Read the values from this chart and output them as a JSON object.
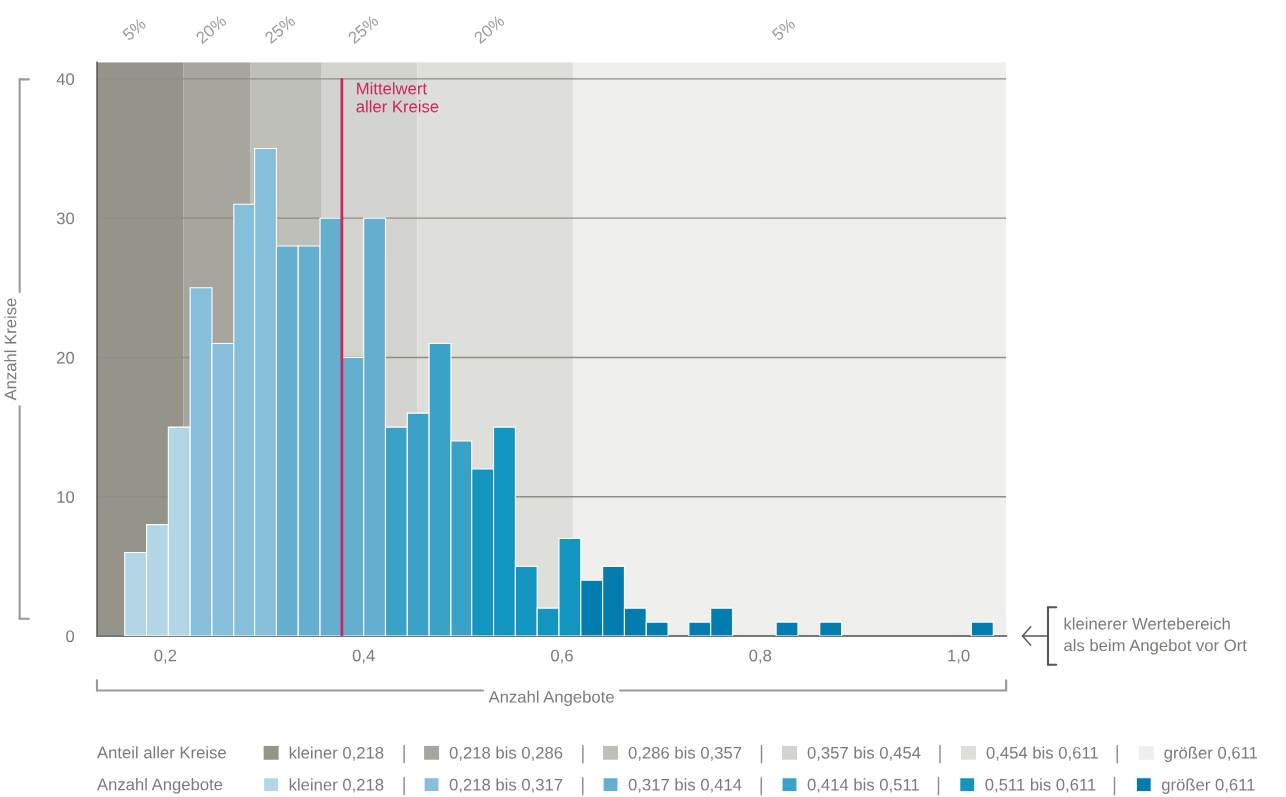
{
  "chart_data": {
    "type": "histogram",
    "bins": [
      0.159,
      0.181,
      0.203,
      0.225,
      0.247,
      0.269,
      0.29,
      0.312,
      0.334,
      0.356,
      0.378,
      0.4,
      0.422,
      0.444,
      0.466,
      0.488,
      0.509,
      0.531,
      0.553,
      0.575,
      0.597,
      0.619,
      0.641,
      0.663,
      0.685,
      0.707,
      0.728,
      0.75,
      0.772,
      0.816,
      0.838,
      0.86,
      0.882,
      1.013,
      1.035
    ],
    "series": [
      {
        "name": "kleiner 0,218",
        "color": "#b2d6e6",
        "values": [
          6,
          8,
          15,
          null,
          null,
          null,
          null,
          null,
          null,
          null,
          null,
          null,
          null,
          null,
          null,
          null,
          null,
          null,
          null,
          null,
          null,
          null,
          null,
          null,
          null,
          null,
          null,
          null,
          null,
          null,
          null,
          null,
          null,
          null
        ]
      },
      {
        "name": "0,218 bis 0,317",
        "color": "#87bfdb",
        "values": [
          null,
          null,
          null,
          25,
          21,
          31,
          35,
          null,
          null,
          null,
          null,
          null,
          null,
          null,
          null,
          null,
          null,
          null,
          null,
          null,
          null,
          null,
          null,
          null,
          null,
          null,
          null,
          null,
          null,
          null,
          null,
          null,
          null,
          null
        ]
      },
      {
        "name": "0,317 bis 0,414",
        "color": "#64afd0",
        "values": [
          null,
          null,
          null,
          null,
          null,
          null,
          null,
          28,
          28,
          30,
          20,
          30,
          null,
          null,
          null,
          null,
          null,
          null,
          null,
          null,
          null,
          null,
          null,
          null,
          null,
          null,
          null,
          null,
          null,
          null,
          null,
          null,
          null,
          null
        ]
      },
      {
        "name": "0,414 bis 0,511",
        "color": "#3aa2c6",
        "values": [
          null,
          null,
          null,
          null,
          null,
          null,
          null,
          null,
          null,
          null,
          null,
          null,
          15,
          16,
          21,
          14,
          null,
          null,
          null,
          null,
          null,
          null,
          null,
          null,
          null,
          null,
          null,
          null,
          null,
          null,
          null,
          null,
          null,
          null
        ]
      },
      {
        "name": "0,511 bis 0,611",
        "color": "#1295be",
        "values": [
          null,
          null,
          null,
          null,
          null,
          null,
          null,
          null,
          null,
          null,
          null,
          null,
          null,
          null,
          null,
          null,
          12,
          15,
          5,
          2,
          7,
          null,
          null,
          null,
          null,
          null,
          null,
          null,
          null,
          null,
          null,
          null,
          null,
          null
        ]
      },
      {
        "name": "größer 0,611",
        "color": "#037db0",
        "values": [
          null,
          null,
          null,
          null,
          null,
          null,
          null,
          null,
          null,
          null,
          null,
          null,
          null,
          null,
          null,
          null,
          null,
          null,
          null,
          null,
          null,
          4,
          5,
          2,
          1,
          0,
          1,
          2,
          0,
          1,
          0,
          1,
          0,
          1
        ]
      }
    ],
    "xlim": [
      0.131,
      1.048
    ],
    "xticks": [
      {
        "value": 0.2,
        "label": "0,2"
      },
      {
        "value": 0.4,
        "label": "0,4"
      },
      {
        "value": 0.6,
        "label": "0,6"
      },
      {
        "value": 0.8,
        "label": "0,8"
      },
      {
        "value": 1.0,
        "label": "1,0"
      }
    ],
    "ylim": [
      0,
      41.2
    ],
    "yticks": [
      0,
      10,
      20,
      30,
      40
    ],
    "xlabel": "Anzahl Angebote",
    "ylabel": "Anzahl Kreise",
    "legend_title": "Anzahl Angebote",
    "legend": "bottom",
    "grid": "y",
    "bands": [
      {
        "axis": "x",
        "from": 0.131,
        "to": 0.218,
        "label": "kleiner 0,218",
        "color": "#95948b"
      },
      {
        "axis": "x",
        "from": 0.218,
        "to": 0.286,
        "label": "0,218 bis 0,286",
        "color": "#a7a69e"
      },
      {
        "axis": "x",
        "from": 0.286,
        "to": 0.357,
        "label": "0,286 bis 0,357",
        "color": "#bfbfb9"
      },
      {
        "axis": "x",
        "from": 0.357,
        "to": 0.454,
        "label": "0,357 bis 0,454",
        "color": "#d3d3cf"
      },
      {
        "axis": "x",
        "from": 0.454,
        "to": 0.611,
        "label": "0,454 bis 0,611",
        "color": "#dededa"
      },
      {
        "axis": "x",
        "from": 0.611,
        "to": 1.048,
        "label": "größer 0,611",
        "color": "#efefed"
      }
    ],
    "ref_lines": [
      {
        "axis": "x",
        "value": 0.378,
        "label": "Mittelwert\naller Kreise",
        "color": "#d0245c"
      }
    ],
    "annotations": [
      "5%",
      "20%",
      "25%",
      "25%",
      "20%",
      "5%",
      "Anteil aller Kreise",
      "kleinerer Wertebereich\nals beim Angebot vor Ort"
    ]
  }
}
